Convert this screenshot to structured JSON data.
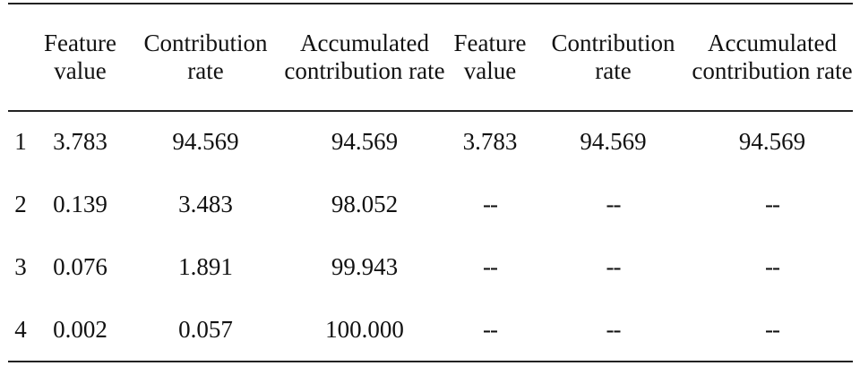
{
  "table": {
    "headers": [
      "",
      "Feature value",
      "Contribution rate",
      "Accumulated contribution rate",
      "Feature value",
      "Contribution rate",
      "Accumulated contribution rate"
    ],
    "rows": [
      [
        "1",
        "3.783",
        "94.569",
        "94.569",
        "3.783",
        "94.569",
        "94.569"
      ],
      [
        "2",
        "0.139",
        "3.483",
        "98.052",
        "--",
        "--",
        "--"
      ],
      [
        "3",
        "0.076",
        "1.891",
        "99.943",
        "--",
        "--",
        "--"
      ],
      [
        "4",
        "0.002",
        "0.057",
        "100.000",
        "--",
        "--",
        "--"
      ]
    ]
  }
}
